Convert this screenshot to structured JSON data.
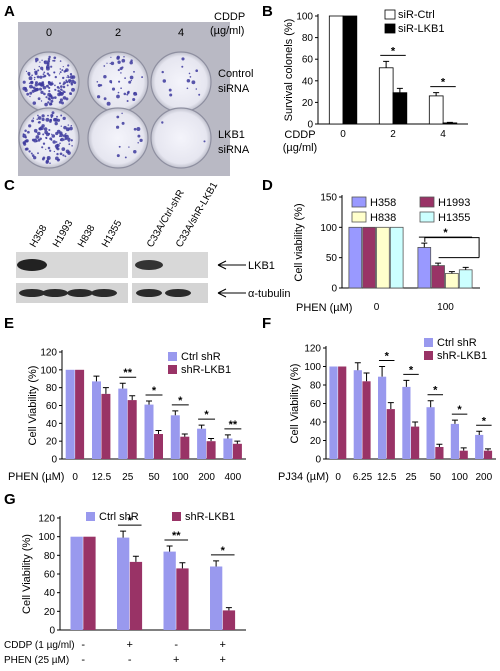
{
  "panel_letters": [
    "A",
    "B",
    "C",
    "D",
    "E",
    "F",
    "G"
  ],
  "panelA": {
    "doses": [
      "0",
      "2",
      "4"
    ],
    "header_line1": "CDDP",
    "header_line2": "(µg/ml)",
    "row_labels": [
      [
        "Control",
        "siRNA"
      ],
      [
        "LKB1",
        "siRNA"
      ]
    ]
  },
  "panelC": {
    "lanes": [
      "H358",
      "H1993",
      "H838",
      "H1355",
      "C33A/Ctrl-shR",
      "C33A/shR-LKB1"
    ],
    "band_labels": [
      "LKB1",
      "α-tubulin"
    ]
  },
  "colors": {
    "ctrl_blue": "#9999ee",
    "lkb1_maroon": "#993366",
    "h358": "#9999ff",
    "h1993": "#993366",
    "h838": "#ffffcc",
    "h1355": "#ccffff"
  },
  "chart_data": [
    {
      "id": "B",
      "type": "bar",
      "ylabel": "Survival colonels (%)",
      "xlabel": "CDDP\n(µg/ml)",
      "ylim": [
        0,
        100
      ],
      "yticks": [
        0,
        20,
        40,
        60,
        80,
        100
      ],
      "categories": [
        "0",
        "2",
        "4"
      ],
      "series": [
        {
          "name": "siR-Ctrl",
          "color": "#ffffff",
          "values": [
            100,
            52,
            26
          ],
          "errors": [
            0,
            6,
            3
          ]
        },
        {
          "name": "siR-LKB1",
          "color": "#000000",
          "values": [
            100,
            29,
            1
          ],
          "errors": [
            0,
            4,
            0.5
          ]
        }
      ],
      "significance": [
        {
          "category": 1,
          "label": "*"
        },
        {
          "category": 2,
          "label": "*"
        }
      ]
    },
    {
      "id": "D",
      "type": "bar",
      "ylabel": "Cell viability (%)",
      "xlabel": "PHEN (µM)",
      "ylim": [
        0,
        150
      ],
      "yticks": [
        0,
        50,
        100,
        150
      ],
      "categories": [
        "0",
        "100"
      ],
      "series": [
        {
          "name": "H358",
          "color": "#9999ff",
          "values": [
            100,
            67
          ],
          "errors": [
            0,
            7
          ]
        },
        {
          "name": "H1993",
          "color": "#993366",
          "values": [
            100,
            37
          ],
          "errors": [
            0,
            4
          ]
        },
        {
          "name": "H838",
          "color": "#ffffcc",
          "values": [
            100,
            24
          ],
          "errors": [
            0,
            3
          ]
        },
        {
          "name": "H1355",
          "color": "#ccffff",
          "values": [
            100,
            30
          ],
          "errors": [
            0,
            4
          ]
        }
      ],
      "significance": [
        {
          "category": 1,
          "label": "*"
        }
      ]
    },
    {
      "id": "E",
      "type": "bar",
      "ylabel": "Cell Viability (%)",
      "xlabel": "PHEN (µM)",
      "ylim": [
        0,
        120
      ],
      "yticks": [
        0,
        20,
        40,
        60,
        80,
        100,
        120
      ],
      "categories": [
        "0",
        "12.5",
        "25",
        "50",
        "100",
        "200",
        "400"
      ],
      "series": [
        {
          "name": "Ctrl shR",
          "color": "#9999ee",
          "values": [
            100,
            87,
            79,
            61,
            49,
            34,
            23
          ],
          "errors": [
            0,
            6,
            6,
            4,
            5,
            4,
            4
          ]
        },
        {
          "name": "shR-LKB1",
          "color": "#993366",
          "values": [
            100,
            73,
            66,
            28,
            25,
            20,
            17
          ],
          "errors": [
            0,
            7,
            5,
            4,
            3,
            3,
            3
          ]
        }
      ],
      "significance": [
        {
          "category": 2,
          "label": "**"
        },
        {
          "category": 3,
          "label": "*"
        },
        {
          "category": 4,
          "label": "*"
        },
        {
          "category": 5,
          "label": "*"
        },
        {
          "category": 6,
          "label": "**"
        }
      ]
    },
    {
      "id": "F",
      "type": "bar",
      "ylabel": "Cell Viability (%)",
      "xlabel": "PJ34 (µM)",
      "ylim": [
        0,
        120
      ],
      "yticks": [
        0,
        20,
        40,
        60,
        80,
        100,
        120
      ],
      "categories": [
        "0",
        "6.25",
        "12.5",
        "25",
        "50",
        "100",
        "200"
      ],
      "series": [
        {
          "name": "Ctrl shR",
          "color": "#9999ee",
          "values": [
            100,
            96,
            89,
            78,
            56,
            38,
            26
          ],
          "errors": [
            0,
            8,
            11,
            7,
            7,
            4,
            4
          ]
        },
        {
          "name": "shR-LKB1",
          "color": "#993366",
          "values": [
            100,
            84,
            54,
            35,
            13,
            9,
            9
          ],
          "errors": [
            0,
            9,
            7,
            5,
            3,
            3,
            2
          ]
        }
      ],
      "significance": [
        {
          "category": 2,
          "label": "*"
        },
        {
          "category": 3,
          "label": "*"
        },
        {
          "category": 4,
          "label": "*"
        },
        {
          "category": 5,
          "label": "*"
        },
        {
          "category": 6,
          "label": "*"
        }
      ]
    },
    {
      "id": "G",
      "type": "bar",
      "ylabel": "Cell Viability (%)",
      "ylim": [
        0,
        120
      ],
      "yticks": [
        0,
        20,
        40,
        60,
        80,
        100,
        120
      ],
      "condition_rows": [
        {
          "label": "CDDP (1 µg/ml)",
          "marks": [
            "-",
            "+",
            "-",
            "+"
          ]
        },
        {
          "label": "PHEN (25 µM)",
          "marks": [
            "-",
            "-",
            "+",
            "+"
          ]
        }
      ],
      "series": [
        {
          "name": "Ctrl shR",
          "color": "#9999ee",
          "values": [
            100,
            99,
            84,
            68
          ],
          "errors": [
            0,
            7,
            6,
            6
          ]
        },
        {
          "name": "shR-LKB1",
          "color": "#993366",
          "values": [
            100,
            73,
            66,
            21
          ],
          "errors": [
            0,
            6,
            6,
            3
          ]
        }
      ],
      "significance": [
        {
          "category": 1,
          "label": "*"
        },
        {
          "category": 2,
          "label": "**"
        },
        {
          "category": 3,
          "label": "*"
        }
      ]
    }
  ]
}
